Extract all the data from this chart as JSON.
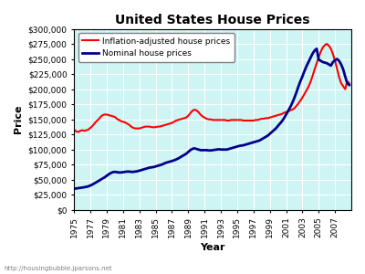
{
  "title": "United States House Prices",
  "xlabel": "Year",
  "ylabel": "Price",
  "background_color": "#cef4f4",
  "grid_color": "#ffffff",
  "watermark": "http://housingbubble.jparsons.net",
  "ylim": [
    0,
    300000
  ],
  "yticks": [
    0,
    25000,
    50000,
    75000,
    100000,
    125000,
    150000,
    175000,
    200000,
    225000,
    250000,
    275000,
    300000
  ],
  "legend_labels": [
    "Inflation-adjusted house prices",
    "Nominal house prices"
  ],
  "legend_colors": [
    "red",
    "#00008b"
  ],
  "inflation_adjusted": {
    "years": [
      1975.0,
      1975.25,
      1975.5,
      1975.75,
      1976.0,
      1976.25,
      1976.5,
      1976.75,
      1977.0,
      1977.25,
      1977.5,
      1977.75,
      1978.0,
      1978.25,
      1978.5,
      1978.75,
      1979.0,
      1979.25,
      1979.5,
      1979.75,
      1980.0,
      1980.25,
      1980.5,
      1980.75,
      1981.0,
      1981.25,
      1981.5,
      1981.75,
      1982.0,
      1982.25,
      1982.5,
      1982.75,
      1983.0,
      1983.25,
      1983.5,
      1983.75,
      1984.0,
      1984.25,
      1984.5,
      1984.75,
      1985.0,
      1985.25,
      1985.5,
      1985.75,
      1986.0,
      1986.25,
      1986.5,
      1986.75,
      1987.0,
      1987.25,
      1987.5,
      1987.75,
      1988.0,
      1988.25,
      1988.5,
      1988.75,
      1989.0,
      1989.25,
      1989.5,
      1989.75,
      1990.0,
      1990.25,
      1990.5,
      1990.75,
      1991.0,
      1991.25,
      1991.5,
      1991.75,
      1992.0,
      1992.25,
      1992.5,
      1992.75,
      1993.0,
      1993.25,
      1993.5,
      1993.75,
      1994.0,
      1994.25,
      1994.5,
      1994.75,
      1995.0,
      1995.25,
      1995.5,
      1995.75,
      1996.0,
      1996.25,
      1996.5,
      1996.75,
      1997.0,
      1997.25,
      1997.5,
      1997.75,
      1998.0,
      1998.25,
      1998.5,
      1998.75,
      1999.0,
      1999.25,
      1999.5,
      1999.75,
      2000.0,
      2000.25,
      2000.5,
      2000.75,
      2001.0,
      2001.25,
      2001.5,
      2001.75,
      2002.0,
      2002.25,
      2002.5,
      2002.75,
      2003.0,
      2003.25,
      2003.5,
      2003.75,
      2004.0,
      2004.25,
      2004.5,
      2004.75,
      2005.0,
      2005.25,
      2005.5,
      2005.75,
      2006.0,
      2006.25,
      2006.5,
      2006.75,
      2007.0,
      2007.25,
      2007.5,
      2007.75,
      2008.0,
      2008.25,
      2008.5,
      2008.75
    ],
    "values": [
      133000,
      130000,
      129000,
      131000,
      132000,
      131000,
      132000,
      133000,
      136000,
      139000,
      143000,
      147000,
      150000,
      154000,
      157000,
      158000,
      158000,
      157000,
      156000,
      155000,
      154000,
      151000,
      149000,
      147000,
      146000,
      145000,
      143000,
      141000,
      138000,
      136000,
      135000,
      135000,
      135000,
      136000,
      137000,
      138000,
      138000,
      138000,
      137000,
      137000,
      137000,
      138000,
      138000,
      139000,
      140000,
      141000,
      142000,
      143000,
      144000,
      146000,
      148000,
      149000,
      150000,
      151000,
      152000,
      153000,
      156000,
      160000,
      164000,
      166000,
      165000,
      162000,
      158000,
      155000,
      153000,
      151000,
      150000,
      150000,
      149000,
      149000,
      149000,
      149000,
      149000,
      149000,
      149000,
      148000,
      148000,
      149000,
      149000,
      149000,
      149000,
      149000,
      149000,
      148000,
      148000,
      148000,
      148000,
      148000,
      148000,
      149000,
      149000,
      150000,
      151000,
      151000,
      152000,
      152000,
      153000,
      154000,
      155000,
      156000,
      157000,
      158000,
      159000,
      161000,
      162000,
      163000,
      165000,
      166000,
      168000,
      172000,
      176000,
      181000,
      186000,
      192000,
      198000,
      204000,
      212000,
      222000,
      233000,
      243000,
      253000,
      262000,
      269000,
      273000,
      275000,
      272000,
      267000,
      258000,
      247000,
      234000,
      220000,
      210000,
      205000,
      200000,
      213000,
      210000
    ]
  },
  "nominal": {
    "years": [
      1975.0,
      1975.25,
      1975.5,
      1975.75,
      1976.0,
      1976.25,
      1976.5,
      1976.75,
      1977.0,
      1977.25,
      1977.5,
      1977.75,
      1978.0,
      1978.25,
      1978.5,
      1978.75,
      1979.0,
      1979.25,
      1979.5,
      1979.75,
      1980.0,
      1980.25,
      1980.5,
      1980.75,
      1981.0,
      1981.25,
      1981.5,
      1981.75,
      1982.0,
      1982.25,
      1982.5,
      1982.75,
      1983.0,
      1983.25,
      1983.5,
      1983.75,
      1984.0,
      1984.25,
      1984.5,
      1984.75,
      1985.0,
      1985.25,
      1985.5,
      1985.75,
      1986.0,
      1986.25,
      1986.5,
      1986.75,
      1987.0,
      1987.25,
      1987.5,
      1987.75,
      1988.0,
      1988.25,
      1988.5,
      1988.75,
      1989.0,
      1989.25,
      1989.5,
      1989.75,
      1990.0,
      1990.25,
      1990.5,
      1990.75,
      1991.0,
      1991.25,
      1991.5,
      1991.75,
      1992.0,
      1992.25,
      1992.5,
      1992.75,
      1993.0,
      1993.25,
      1993.5,
      1993.75,
      1994.0,
      1994.25,
      1994.5,
      1994.75,
      1995.0,
      1995.25,
      1995.5,
      1995.75,
      1996.0,
      1996.25,
      1996.5,
      1996.75,
      1997.0,
      1997.25,
      1997.5,
      1997.75,
      1998.0,
      1998.25,
      1998.5,
      1998.75,
      1999.0,
      1999.25,
      1999.5,
      1999.75,
      2000.0,
      2000.25,
      2000.5,
      2000.75,
      2001.0,
      2001.25,
      2001.5,
      2001.75,
      2002.0,
      2002.25,
      2002.5,
      2002.75,
      2003.0,
      2003.25,
      2003.5,
      2003.75,
      2004.0,
      2004.25,
      2004.5,
      2004.75,
      2005.0,
      2005.25,
      2005.5,
      2005.75,
      2006.0,
      2006.25,
      2006.5,
      2006.75,
      2007.0,
      2007.25,
      2007.5,
      2007.75,
      2008.0,
      2008.25,
      2008.5,
      2008.75
    ],
    "values": [
      35000,
      35500,
      36000,
      36500,
      37000,
      37500,
      38200,
      39000,
      40500,
      42000,
      44000,
      46000,
      48000,
      50000,
      52000,
      54000,
      56500,
      59000,
      61000,
      62500,
      63000,
      62500,
      62000,
      62000,
      62500,
      63000,
      63500,
      63500,
      63000,
      63000,
      63500,
      64000,
      65000,
      66000,
      67000,
      68000,
      69000,
      70000,
      70500,
      71000,
      72000,
      73000,
      74000,
      75000,
      76500,
      78000,
      79000,
      80000,
      81000,
      82000,
      83500,
      85000,
      87000,
      89000,
      91000,
      93000,
      96000,
      99000,
      101000,
      102000,
      101000,
      100000,
      99000,
      99000,
      99000,
      99000,
      98500,
      98500,
      99000,
      99500,
      100000,
      100500,
      100000,
      100000,
      100000,
      100000,
      101000,
      102000,
      103000,
      104000,
      105000,
      106000,
      106500,
      107000,
      108000,
      109000,
      110000,
      111000,
      112000,
      113000,
      114000,
      115000,
      117000,
      119000,
      121000,
      123000,
      126000,
      129000,
      132000,
      135000,
      139000,
      143000,
      147000,
      152000,
      158000,
      164000,
      170000,
      177000,
      185000,
      194000,
      204000,
      213000,
      221000,
      230000,
      238000,
      245000,
      252000,
      259000,
      264000,
      267000,
      249000,
      247000,
      245000,
      244000,
      243000,
      241000,
      239000,
      245000,
      248000,
      250000,
      247000,
      241000,
      233000,
      221000,
      210000,
      207000
    ]
  },
  "xticks": [
    1975,
    1977,
    1979,
    1981,
    1983,
    1985,
    1987,
    1989,
    1991,
    1993,
    1995,
    1997,
    1999,
    2001,
    2003,
    2005,
    2007
  ],
  "xlim": [
    1975,
    2009
  ]
}
